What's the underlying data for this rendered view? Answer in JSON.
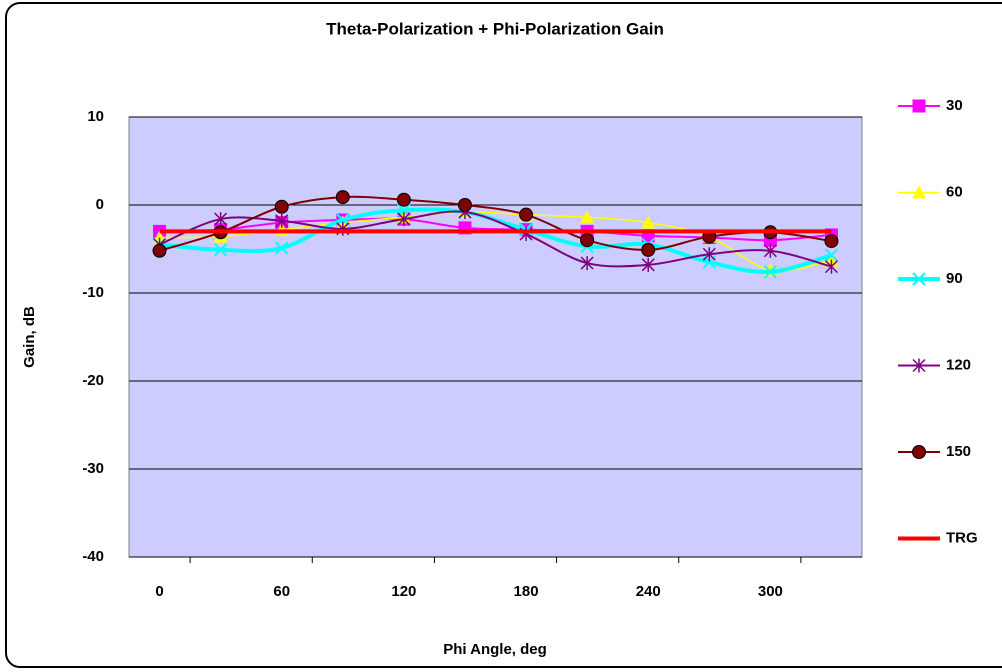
{
  "chart_data": {
    "type": "line",
    "title": "Theta-Polarization + Phi-Polarization Gain",
    "x_label": "Phi Angle, deg",
    "y_label": "Gain, dB",
    "categories": [
      "0",
      null,
      "60",
      null,
      "120",
      null,
      "180",
      null,
      "240",
      null,
      "300",
      null
    ],
    "ylim": [
      -40,
      10
    ],
    "yticks": [
      -40,
      -30,
      -20,
      -10,
      0,
      10
    ],
    "grid": true,
    "smooth": true,
    "legend": "right",
    "series": [
      {
        "name": "30",
        "color": "#ff00ff",
        "marker": "square",
        "values": [
          -3,
          -2.8,
          -2,
          -1.7,
          -1.6,
          -2.6,
          -2.8,
          -3,
          -3.5,
          -3.7,
          -4,
          -3.4
        ]
      },
      {
        "name": "60",
        "color": "#ffff00",
        "marker": "triangle",
        "values": [
          -3.7,
          -3.6,
          -2.8,
          -2,
          -1.4,
          -0.8,
          -1.1,
          -1.4,
          -2,
          -3.6,
          -7.4,
          -6.3
        ]
      },
      {
        "name": "90",
        "color": "#00ffff",
        "marker": "x",
        "values": [
          -4.5,
          -5.1,
          -4.9,
          -1.7,
          -0.6,
          -0.8,
          -2.8,
          -4.7,
          -4.5,
          -6.5,
          -7.6,
          -5.7
        ]
      },
      {
        "name": "120",
        "color": "#800080",
        "marker": "asterisk",
        "values": [
          -4.5,
          -1.6,
          -1.8,
          -2.7,
          -1.6,
          -0.8,
          -3.3,
          -6.6,
          -6.8,
          -5.6,
          -5.2,
          -7
        ]
      },
      {
        "name": "150",
        "color": "#800000",
        "marker": "circle",
        "values": [
          -5.2,
          -3.1,
          -0.2,
          0.9,
          0.6,
          0,
          -1.1,
          -4,
          -5.1,
          -3.6,
          -3.1,
          -4.1
        ]
      },
      {
        "name": "TRG",
        "color": "#ff0000",
        "marker": "none",
        "values": [
          -3,
          -3,
          -3,
          -3,
          -3,
          -3,
          -3,
          -3,
          -3,
          -3,
          -3,
          -3
        ]
      }
    ]
  }
}
